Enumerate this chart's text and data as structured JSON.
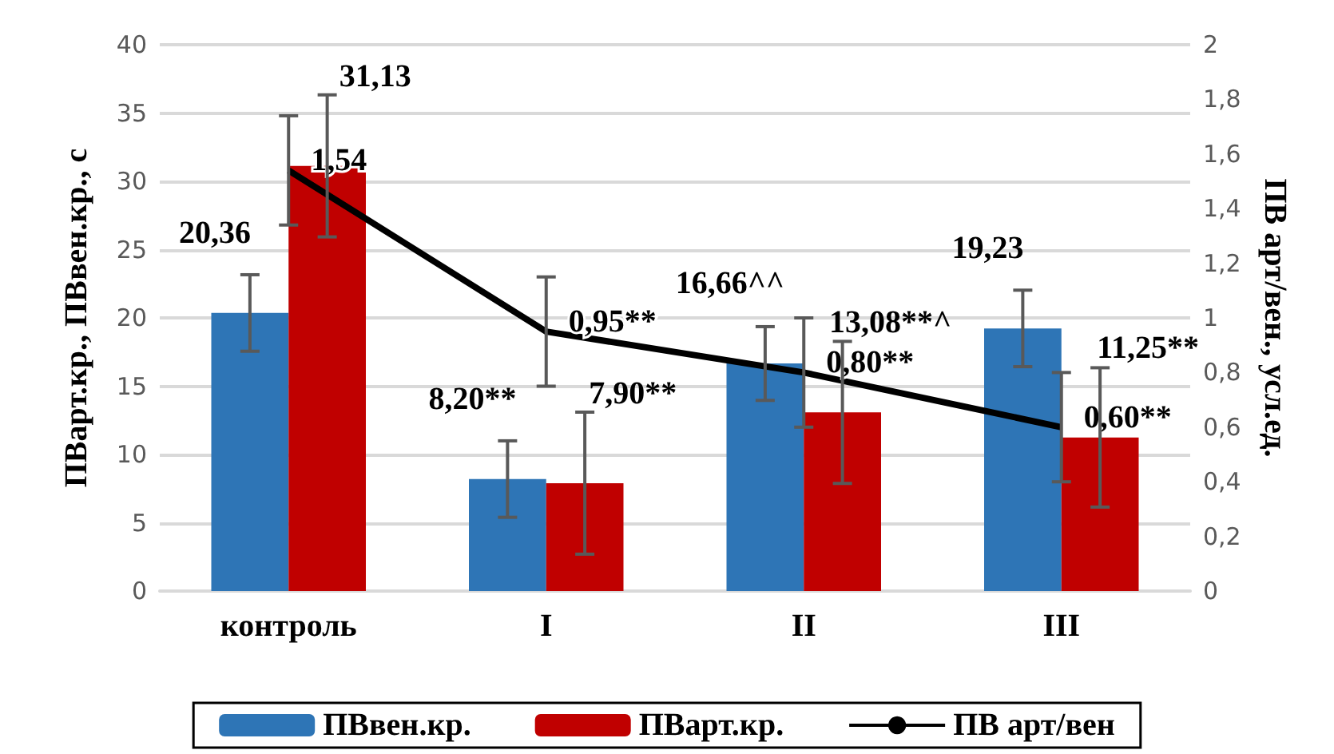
{
  "chart_data": {
    "type": "bar",
    "categories": [
      "контроль",
      "I",
      "II",
      "III"
    ],
    "ylabel": "ПВарт.кр., ПВвен.кр., с",
    "y2label": "ПВ арт/вен., усл.ед.",
    "ylim": [
      0,
      40
    ],
    "yticks": [
      0,
      5,
      10,
      15,
      20,
      25,
      30,
      35,
      40
    ],
    "y2lim": [
      0,
      2
    ],
    "y2ticks": [
      {
        "value": 0,
        "label": "0"
      },
      {
        "value": 0.2,
        "label": "0,2"
      },
      {
        "value": 0.4,
        "label": "0,4"
      },
      {
        "value": 0.6,
        "label": "0,6"
      },
      {
        "value": 0.8,
        "label": "0,8"
      },
      {
        "value": 1,
        "label": "1"
      },
      {
        "value": 1.2,
        "label": "1,2"
      },
      {
        "value": 1.4,
        "label": "1,4"
      },
      {
        "value": 1.6,
        "label": "1,6"
      },
      {
        "value": 1.8,
        "label": "1,8"
      },
      {
        "value": 2,
        "label": "2"
      }
    ],
    "grid": "y",
    "legend": "bottom",
    "series": [
      {
        "name": "ПВвен.кр.",
        "color": "#2e75b6",
        "values": [
          20.36,
          8.2,
          16.66,
          19.23
        ],
        "value_labels": [
          "20,36",
          "8,20**",
          "16,66^^",
          "19,23"
        ],
        "errors": [
          2.8,
          2.8,
          2.7,
          2.8
        ]
      },
      {
        "name": "ПВарт.кр.",
        "color": "#c00000",
        "values": [
          31.13,
          7.9,
          13.08,
          11.25
        ],
        "value_labels": [
          "31,13",
          "7,90**",
          "13,08**^",
          "11,25**"
        ],
        "errors": [
          5.2,
          5.2,
          5.2,
          5.1
        ]
      },
      {
        "name": "ПВ арт/вен",
        "type": "line",
        "axis": "y2",
        "color": "#000000",
        "values": [
          1.54,
          0.95,
          0.8,
          0.6
        ],
        "value_labels": [
          "1,54",
          "0,95**",
          "0,80**",
          "0,60**"
        ],
        "errors": [
          0.2,
          0.2,
          0.2,
          0.2
        ],
        "marker": "none"
      }
    ]
  }
}
